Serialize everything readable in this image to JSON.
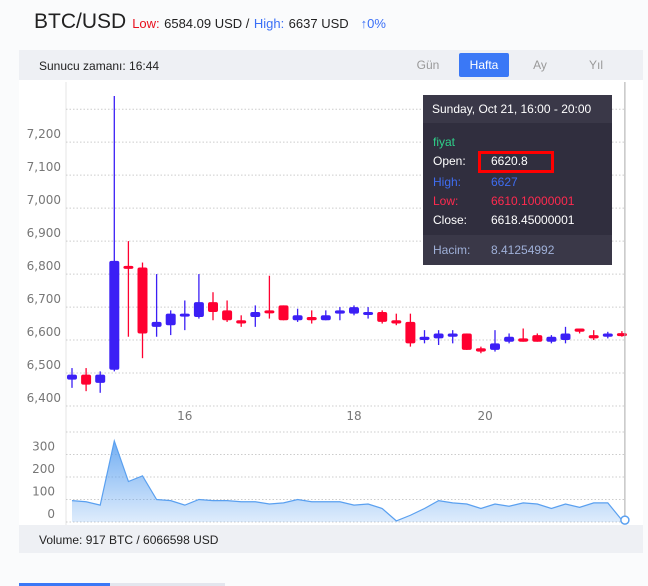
{
  "header": {
    "title": "BTC/USD",
    "low_label": "Low:",
    "low_value": "6584.09 USD /",
    "high_label": "High:",
    "high_value": "6637 USD",
    "change": "↑0%"
  },
  "toolbar": {
    "server_time": "Sunucu zamanı: 16:44",
    "tabs": [
      {
        "label": "Gün"
      },
      {
        "label": "Hafta",
        "active": true
      },
      {
        "label": "Ay"
      },
      {
        "label": "Yıl"
      }
    ]
  },
  "tooltip": {
    "title": "Sunday, Oct 21, 16:00 - 20:00",
    "series": "fiyat",
    "open_label": "Open:",
    "open": "6620.8",
    "high_label": "High:",
    "high": "6627",
    "low_label": "Low:",
    "low": "6610.10000001",
    "close_label": "Close:",
    "close": "6618.45000001",
    "volume_label": "Hacim:",
    "volume": "8.41254992"
  },
  "footer": {
    "volume": "Volume: 917 BTC / 6066598 USD"
  },
  "colors": {
    "up": "#3b1ff5",
    "down": "#ff0030",
    "accent": "#3a78f6",
    "volume": "#5aa0f0"
  },
  "chart_data": [
    {
      "type": "candlestick",
      "ylim": [
        6400,
        7340
      ],
      "yticks": [
        "6,400",
        "6,500",
        "6,600",
        "6,700",
        "6,800",
        "6,900",
        "7,000",
        "7,100",
        "7,200"
      ],
      "ytick_values": [
        6400,
        6500,
        6600,
        6700,
        6800,
        6900,
        7000,
        7100,
        7200
      ],
      "xticks": [
        {
          "label": "16",
          "index": 8
        },
        {
          "label": "18",
          "index": 20
        },
        {
          "label": "20",
          "index": 29.3
        }
      ],
      "candles": [
        [
          6480,
          6515,
          6455,
          6495
        ],
        [
          6495,
          6515,
          6445,
          6465
        ],
        [
          6470,
          6505,
          6440,
          6495
        ],
        [
          6510,
          7340,
          6505,
          6840
        ],
        [
          6825,
          6900,
          6610,
          6820
        ],
        [
          6820,
          6835,
          6545,
          6620
        ],
        [
          6640,
          6800,
          6610,
          6655
        ],
        [
          6645,
          6690,
          6615,
          6680
        ],
        [
          6675,
          6720,
          6630,
          6680
        ],
        [
          6670,
          6800,
          6665,
          6715
        ],
        [
          6715,
          6745,
          6660,
          6685
        ],
        [
          6690,
          6720,
          6655,
          6660
        ],
        [
          6660,
          6675,
          6640,
          6650
        ],
        [
          6670,
          6705,
          6640,
          6685
        ],
        [
          6690,
          6795,
          6665,
          6685
        ],
        [
          6705,
          6705,
          6660,
          6660
        ],
        [
          6660,
          6695,
          6655,
          6675
        ],
        [
          6670,
          6690,
          6650,
          6660
        ],
        [
          6660,
          6690,
          6660,
          6675
        ],
        [
          6680,
          6700,
          6660,
          6690
        ],
        [
          6680,
          6705,
          6675,
          6700
        ],
        [
          6680,
          6700,
          6665,
          6685
        ],
        [
          6685,
          6690,
          6650,
          6655
        ],
        [
          6660,
          6680,
          6645,
          6650
        ],
        [
          6655,
          6680,
          6580,
          6590
        ],
        [
          6600,
          6630,
          6590,
          6610
        ],
        [
          6605,
          6630,
          6585,
          6620
        ],
        [
          6610,
          6630,
          6590,
          6620
        ],
        [
          6620,
          6620,
          6570,
          6570
        ],
        [
          6575,
          6580,
          6560,
          6565
        ],
        [
          6570,
          6630,
          6565,
          6590
        ],
        [
          6595,
          6620,
          6590,
          6610
        ],
        [
          6605,
          6635,
          6595,
          6595
        ],
        [
          6615,
          6620,
          6595,
          6595
        ],
        [
          6595,
          6615,
          6590,
          6610
        ],
        [
          6600,
          6640,
          6590,
          6620
        ],
        [
          6635,
          6635,
          6620,
          6625
        ],
        [
          6615,
          6630,
          6600,
          6605
        ],
        [
          6610,
          6625,
          6605,
          6620
        ],
        [
          6620.8,
          6627,
          6610.1,
          6618.45
        ]
      ]
    },
    {
      "type": "area",
      "ylim": [
        0,
        400
      ],
      "yticks": [
        "0",
        "100",
        "200",
        "300"
      ],
      "ytick_values": [
        0,
        100,
        200,
        300
      ],
      "values": [
        95,
        90,
        75,
        360,
        180,
        205,
        100,
        95,
        75,
        100,
        95,
        95,
        90,
        90,
        80,
        85,
        100,
        90,
        90,
        90,
        75,
        80,
        60,
        5,
        30,
        60,
        95,
        85,
        80,
        60,
        80,
        70,
        85,
        80,
        60,
        80,
        65,
        85,
        85,
        8.41
      ]
    }
  ]
}
